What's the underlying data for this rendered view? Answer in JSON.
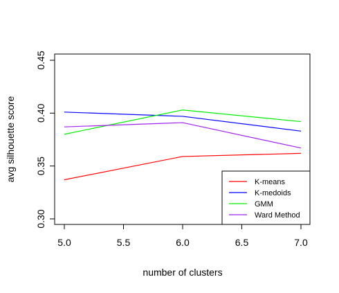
{
  "chart_data": {
    "type": "line",
    "title": "",
    "xlabel": "number of clusters",
    "ylabel": "avg silhouette score",
    "x": [
      5,
      6,
      7
    ],
    "xlim": [
      5,
      7
    ],
    "ylim": [
      0.3,
      0.45
    ],
    "xticks": [
      "5.0",
      "5.5",
      "6.0",
      "6.5",
      "7.0"
    ],
    "yticks": [
      "0.30",
      "0.35",
      "0.40",
      "0.45"
    ],
    "grid": false,
    "legend_position": "bottom-right",
    "series": [
      {
        "name": "K-means",
        "color": "#ff0000",
        "values": [
          0.337,
          0.359,
          0.362
        ]
      },
      {
        "name": "K-medoids",
        "color": "#0000ff",
        "values": [
          0.401,
          0.397,
          0.383
        ]
      },
      {
        "name": "GMM",
        "color": "#00ee00",
        "values": [
          0.38,
          0.403,
          0.392
        ]
      },
      {
        "name": "Ward Method",
        "color": "#a020f0",
        "values": [
          0.387,
          0.391,
          0.367
        ]
      }
    ]
  }
}
